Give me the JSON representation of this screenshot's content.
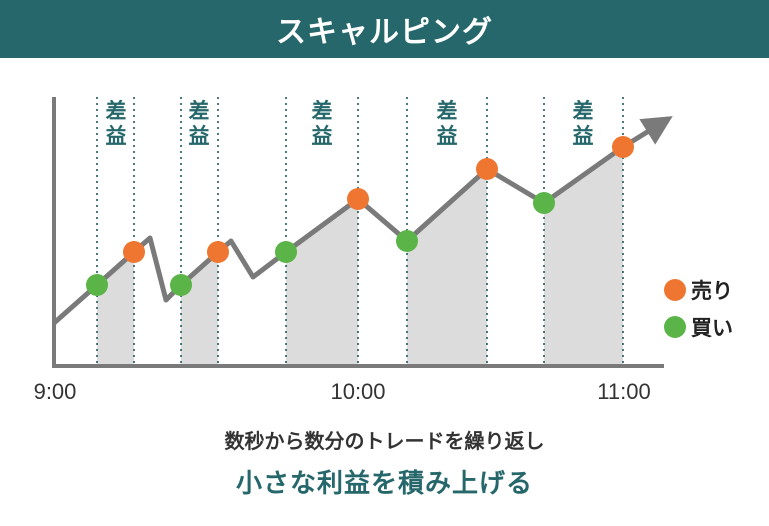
{
  "title": "スキャルピング",
  "spread_label": "差益",
  "axis": {
    "ticks": [
      "9:00",
      "10:00",
      "11:00"
    ]
  },
  "legend": {
    "sell": "売り",
    "buy": "買い"
  },
  "colors": {
    "accent": "#25676a",
    "sell": "#ee7631",
    "buy": "#5bb447",
    "price_line": "#7a7a7a",
    "shade": "#dcdcdc"
  },
  "caption": {
    "line1": "数秒から数分のトレードを繰り返し",
    "line2": "小さな利益を積み上げる"
  }
}
